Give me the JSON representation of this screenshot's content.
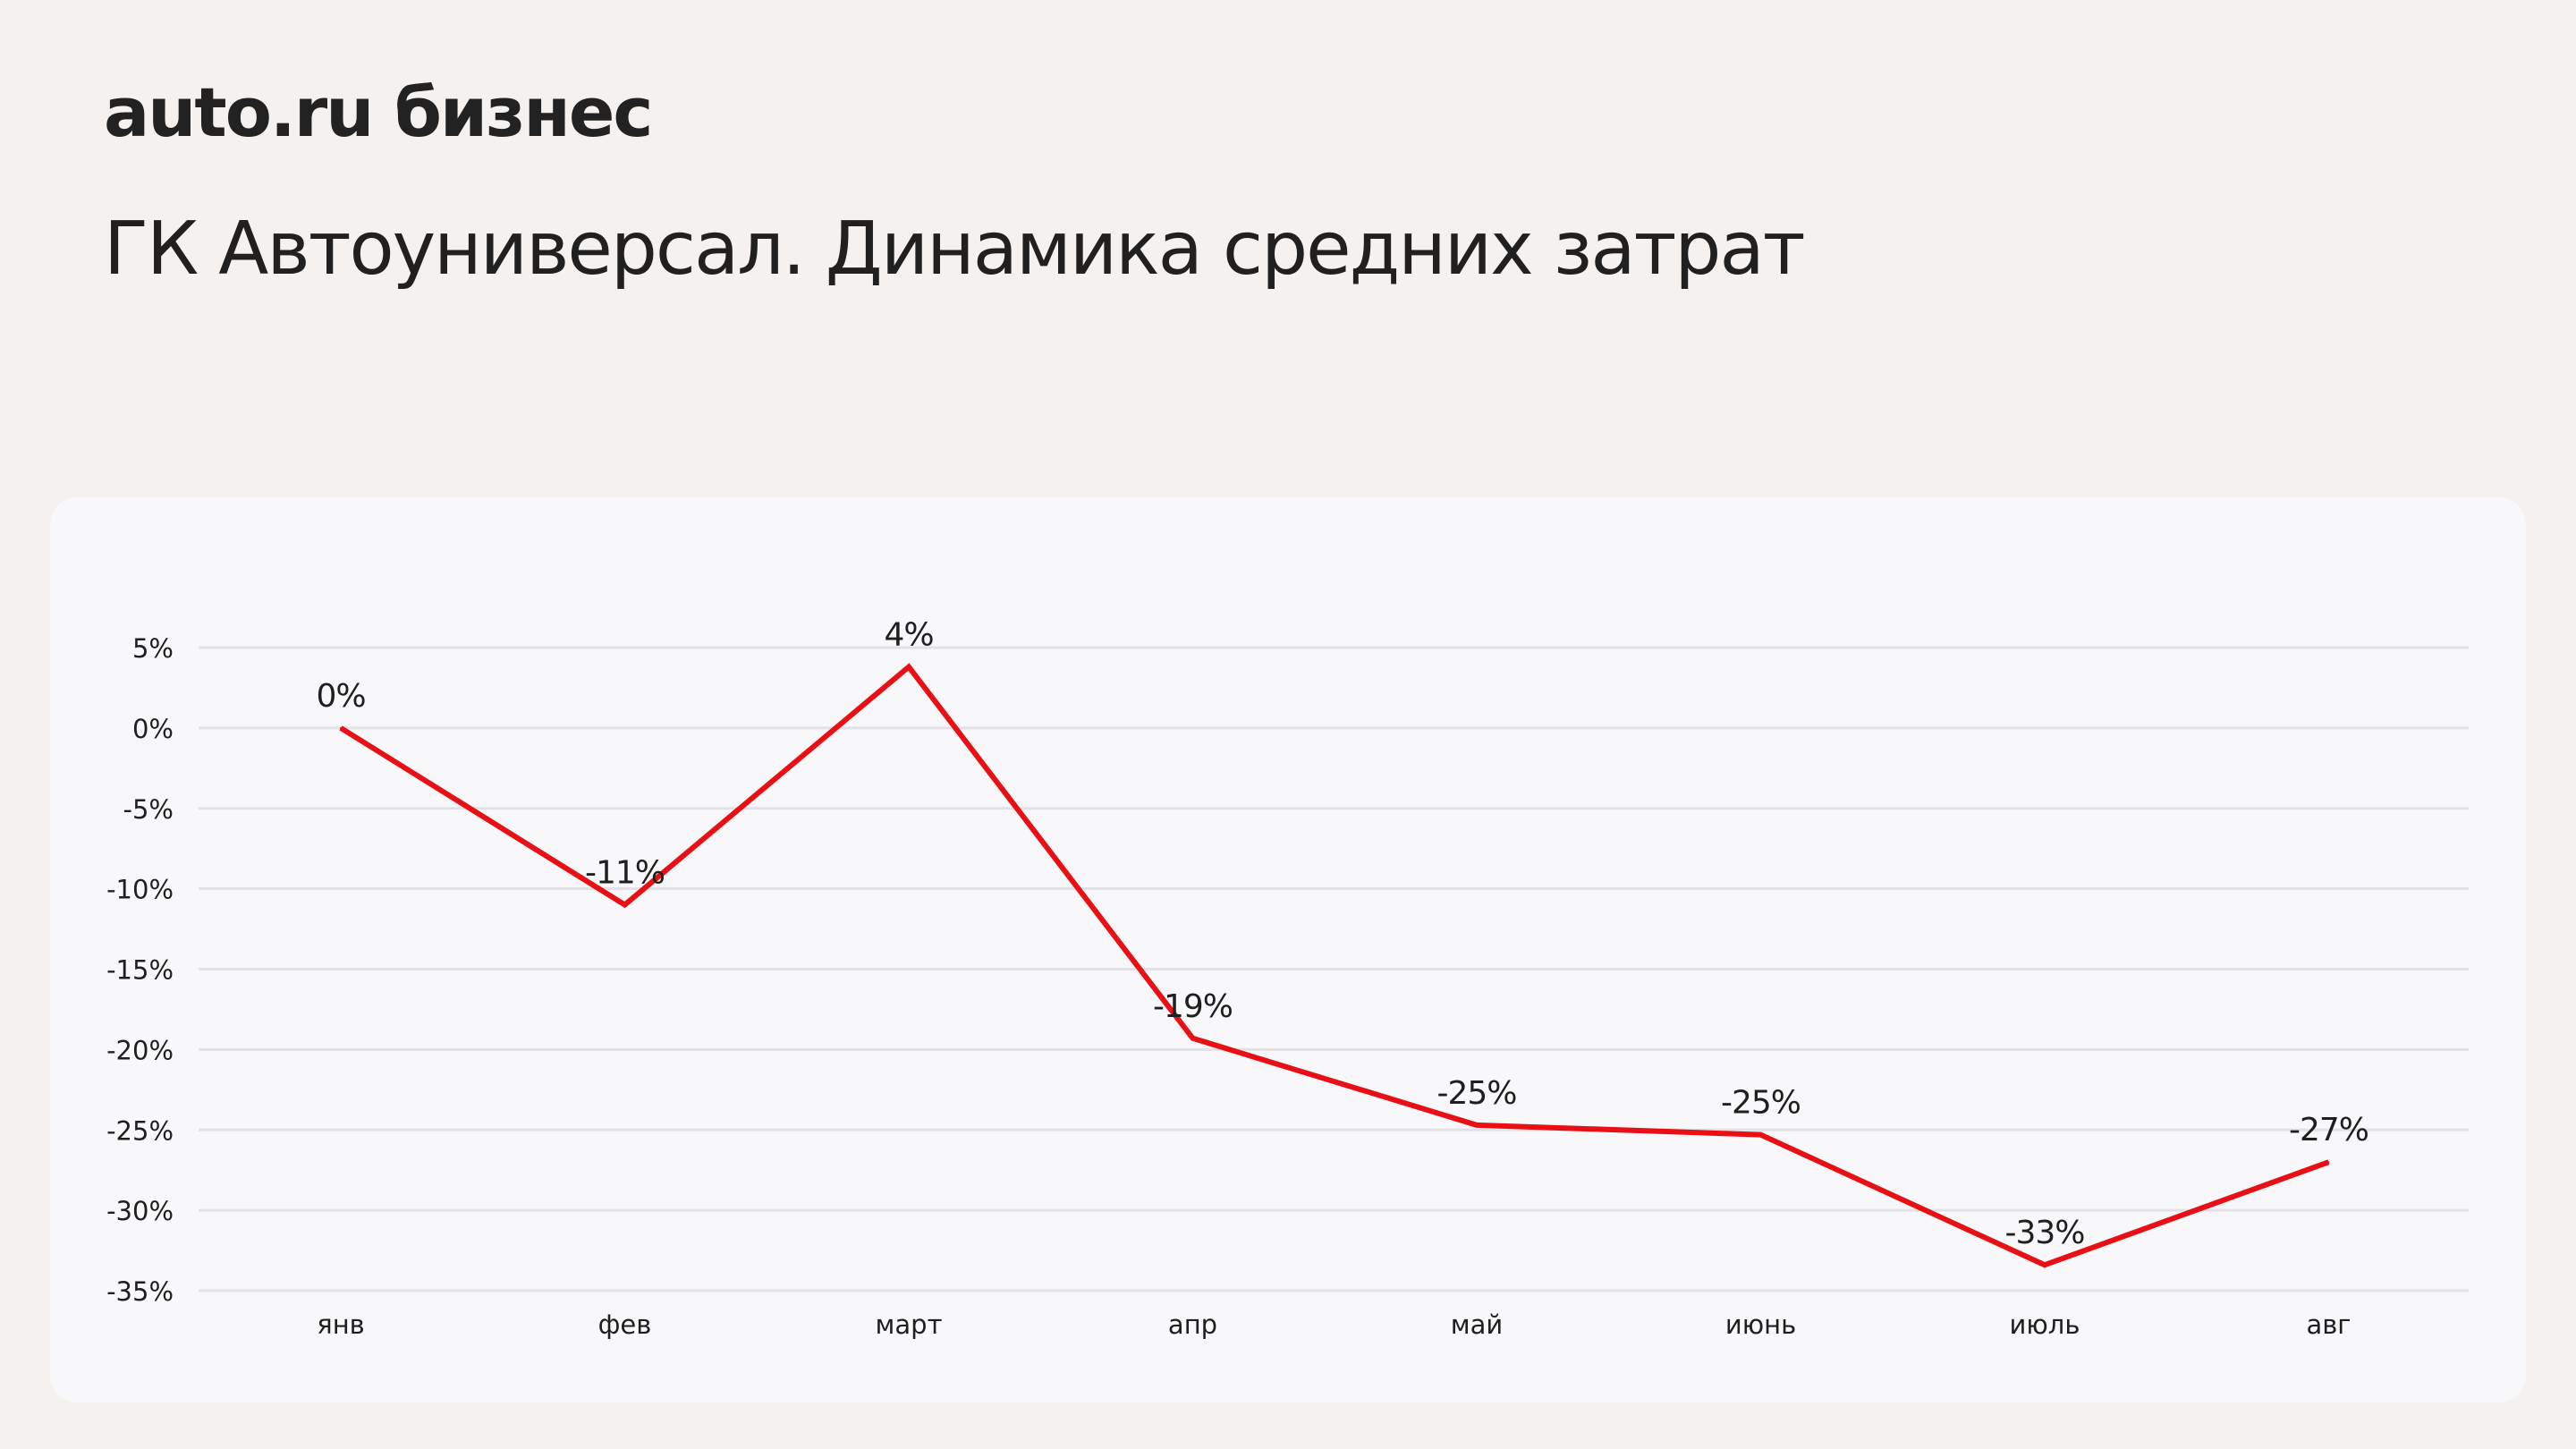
{
  "header": {
    "logo_text": "auto.ru бизнес",
    "title": "ГК Автоуниверсал. Динамика средних затрат"
  },
  "colors": {
    "background": "#f4f1ee",
    "card": "#f8f8fa",
    "line": "#e81014",
    "grid": "#e2e2e6",
    "text": "#1f1f1f"
  },
  "chart_data": {
    "type": "line",
    "categories": [
      "янв",
      "фев",
      "март",
      "апр",
      "май",
      "июнь",
      "июль",
      "авг"
    ],
    "series": [
      {
        "values": [
          0,
          -11,
          3.8,
          -19.3,
          -24.7,
          -25.3,
          -33.4,
          -27
        ],
        "data_labels": [
          "0%",
          "-11%",
          "4%",
          "-19%",
          "-25%",
          "-25%",
          "-33%",
          "-27%"
        ]
      }
    ],
    "y_ticks": [
      5,
      0,
      -5,
      -10,
      -15,
      -20,
      -25,
      -30,
      -35
    ],
    "y_tick_labels": [
      "5%",
      "0%",
      "-5%",
      "-10%",
      "-15%",
      "-20%",
      "-25%",
      "-30%",
      "-35%"
    ],
    "ylim": [
      -35,
      5
    ],
    "grid": true,
    "legend": "none",
    "title": "",
    "xlabel": "",
    "ylabel": ""
  }
}
